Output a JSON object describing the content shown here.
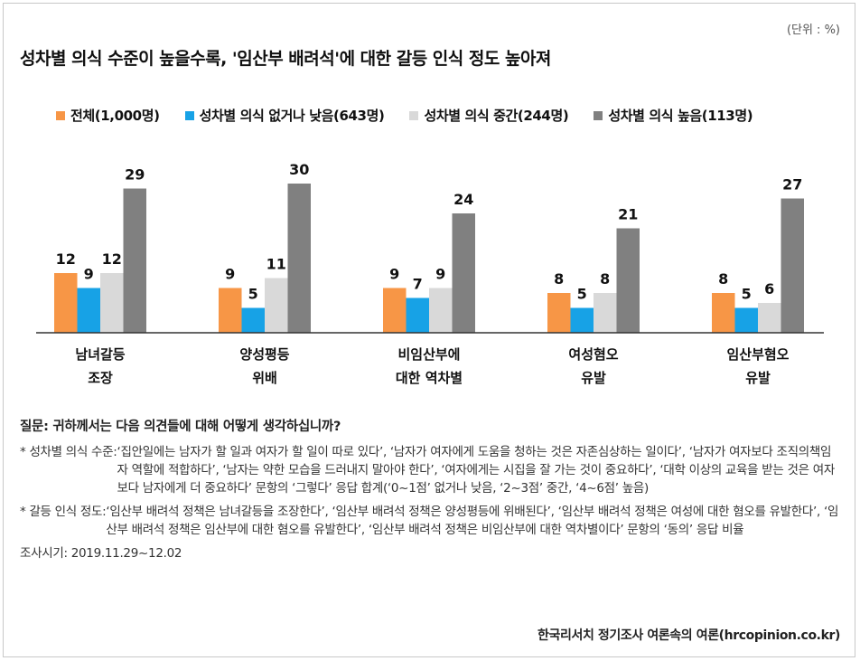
{
  "header": {
    "unit": "(단위 : %)",
    "title": "성차별 의식 수준이 높을수록, '임산부 배려석'에 대한 갈등 인식 정도 높아져"
  },
  "colors": [
    "#f79646",
    "#17a2e6",
    "#d9d9d9",
    "#808080"
  ],
  "chart_data": {
    "type": "bar",
    "title": "성차별 의식 수준이 높을수록, '임산부 배려석'에 대한 갈등 인식 정도 높아져",
    "unit": "(단위 : %)",
    "categories": [
      [
        "남녀갈등",
        "조장"
      ],
      [
        "양성평등",
        "위배"
      ],
      [
        "비임산부에",
        "대한 역차별"
      ],
      [
        "여성혐오",
        "유발"
      ],
      [
        "임산부혐오",
        "유발"
      ]
    ],
    "series": [
      {
        "name": "전체(1,000명)",
        "values": [
          12,
          9,
          9,
          8,
          8
        ]
      },
      {
        "name": "성차별 의식 없거나 낮음(643명)",
        "values": [
          9,
          5,
          7,
          5,
          5
        ]
      },
      {
        "name": "성차별 의식 중간(244명)",
        "values": [
          12,
          11,
          9,
          8,
          6
        ]
      },
      {
        "name": "성차별 의식 높음(113명)",
        "values": [
          29,
          30,
          24,
          21,
          27
        ]
      }
    ],
    "legend_position": "top-left",
    "grid": false
  },
  "notes": {
    "question": "질문: 귀하께서는 다음 의견들에 대해 어떻게 생각하십니까?",
    "items": [
      {
        "label": "* 성차별 의식 수준: ",
        "text": "‘집안일에는 남자가 할 일과 여자가 할 일이 따로 있다’, ‘남자가 여자에게 도움을 청하는 것은 자존심상하는 일이다’, ‘남자가 여자보다 조직의책임자 역할에 적합하다’, ‘남자는 약한 모습을 드러내지 말아야 한다’, ‘여자에게는 시집을 잘 가는 것이 중요하다’, ‘대학 이상의 교육을 받는 것은 여자보다 남자에게 더 중요하다’ 문항의 ‘그렇다’ 응답 합계(‘0~1점’ 없거나 낮음, ‘2~3점’ 중간, ‘4~6점’ 높음)"
      },
      {
        "label": "* 갈등 인식 정도: ",
        "text": "‘임산부 배려석 정책은 남녀갈등을 조장한다’, ‘임산부 배려석 정책은 양성평등에 위배된다’, ‘임산부 배려석 정책은 여성에 대한 혐오를 유발한다’, ‘임산부 배려석 정책은 임산부에 대한 혐오를 유발한다’, ‘임산부 배려석 정책은 비임산부에 대한 역차별이다’ 문항의 ‘동의’ 응답 비율"
      }
    ],
    "survey_period": "조사시기: 2019.11.29~12.02"
  },
  "source": "한국리서치 정기조사 여론속의 여론(hrcopinion.co.kr)"
}
